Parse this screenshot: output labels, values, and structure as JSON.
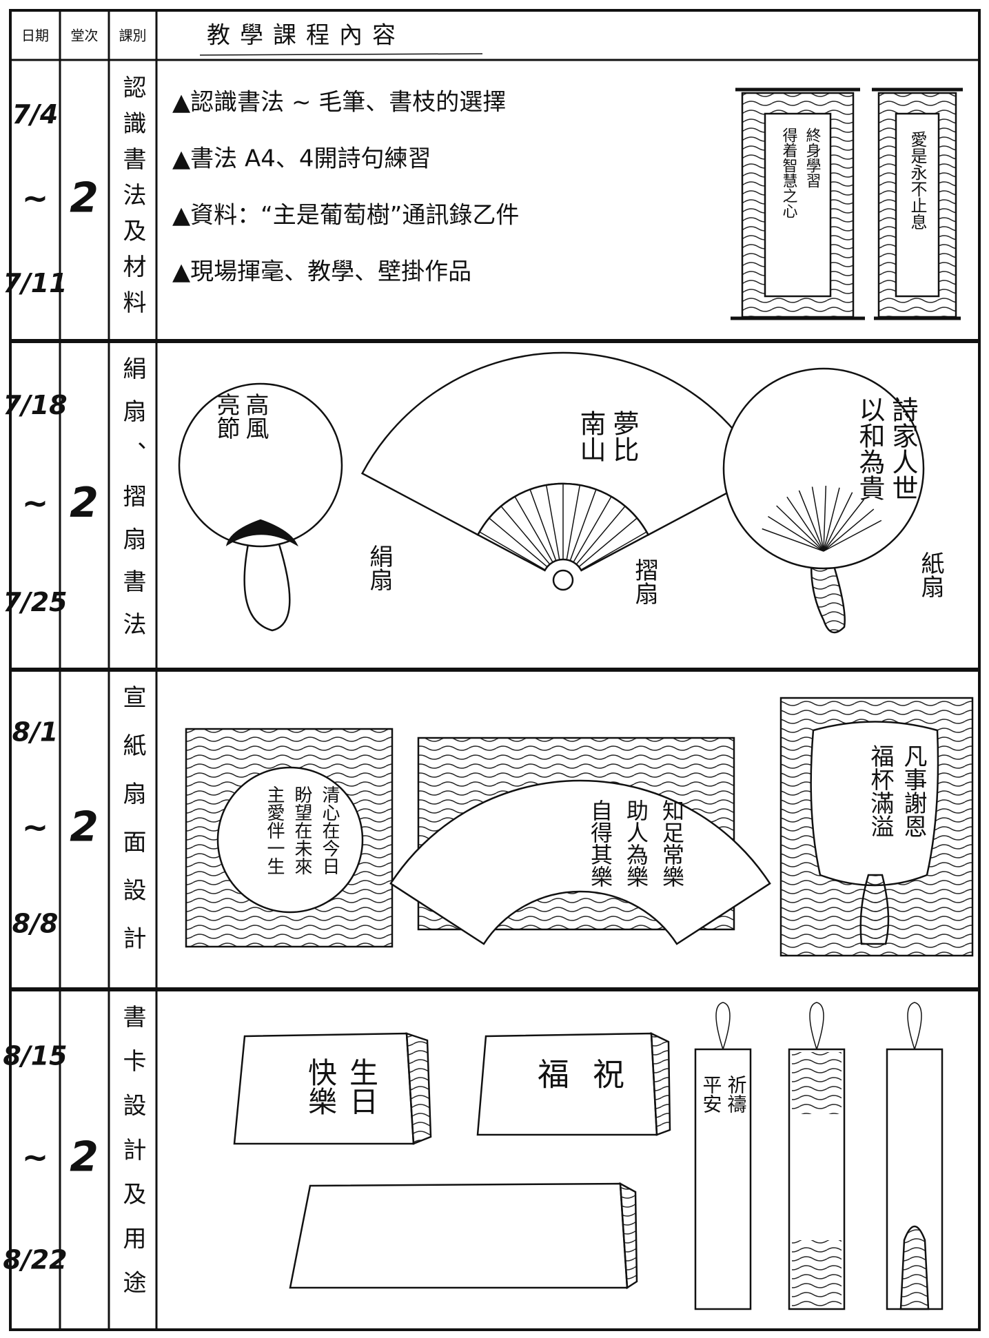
{
  "header": {
    "columns": [
      "日期",
      "堂次",
      "課別",
      "教學課程內容"
    ]
  },
  "rows": [
    {
      "date": [
        "7/4",
        "~",
        "7/11"
      ],
      "sessions": "2",
      "subject": "認識書法及材料",
      "content": [
        "▲認識書法 ~ 毛筆、書枝的選擇",
        "▲書法 A4、4開詩句練習",
        "▲資料：“主是葡萄樹”通訊錄乙件",
        "▲現場揮毫、教學、壁掛作品"
      ],
      "illustrations": [
        {
          "lines": [
            "終身學習",
            "得着智慧之心"
          ]
        },
        {
          "lines": [
            "愛是永不止息"
          ]
        }
      ]
    },
    {
      "date": [
        "7/18",
        "~",
        "7/25"
      ],
      "sessions": "2",
      "subject": "絹扇、摺扇書法",
      "illustrations": [
        {
          "lines": [
            "高風",
            "亮節"
          ],
          "label": "絹扇"
        },
        {
          "lines": [
            "夢比",
            "南山"
          ],
          "label": "摺扇"
        },
        {
          "lines": [
            "詩家人世",
            "以和為貴"
          ],
          "label": "紙扇"
        }
      ]
    },
    {
      "date": [
        "8/1",
        "~",
        "8/8"
      ],
      "sessions": "2",
      "subject": "宣紙扇面設計",
      "illustrations": [
        {
          "lines": [
            "清心在今日",
            "盼望在未來",
            "主愛伴一生"
          ]
        },
        {
          "lines": [
            "知足常樂",
            "助人為樂",
            "自得其樂"
          ]
        },
        {
          "lines": [
            "凡事謝恩",
            "福杯滿溢"
          ]
        }
      ]
    },
    {
      "date": [
        "8/15",
        "~",
        "8/22"
      ],
      "sessions": "2",
      "subject": "書卡設計及用途",
      "illustrations": [
        {
          "lines": [
            "生日",
            "快樂"
          ]
        },
        {
          "lines": [
            "祝",
            "福"
          ]
        },
        {
          "lines": [
            "祈禱",
            "平安"
          ]
        }
      ]
    }
  ]
}
